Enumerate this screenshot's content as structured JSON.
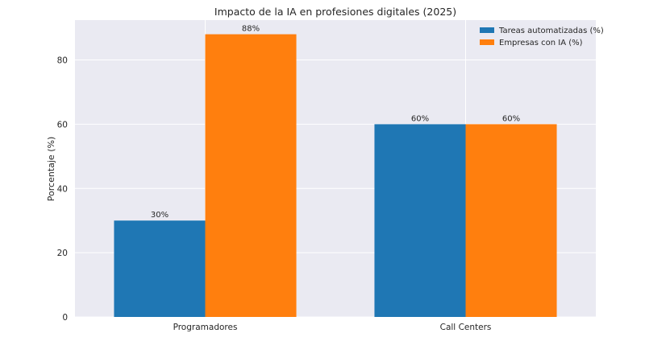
{
  "chart_data": {
    "type": "bar",
    "title": "Impacto de la IA en profesiones digitales (2025)",
    "xlabel": "",
    "ylabel": "Porcentaje (%)",
    "categories": [
      "Programadores",
      "Call Centers"
    ],
    "series": [
      {
        "name": "Tareas automatizadas (%)",
        "values": [
          30,
          60
        ],
        "labels": [
          "30%",
          "60%"
        ],
        "color": "#1f77b4"
      },
      {
        "name": "Empresas con IA (%)",
        "values": [
          88,
          60
        ],
        "labels": [
          "88%",
          "60%"
        ],
        "color": "#ff7f0e"
      }
    ],
    "ylim": [
      0,
      92.4
    ],
    "yticks": [
      0,
      20,
      40,
      60,
      80
    ],
    "grid": true,
    "legend_position": "top-right",
    "background": "#eaeaf2"
  }
}
